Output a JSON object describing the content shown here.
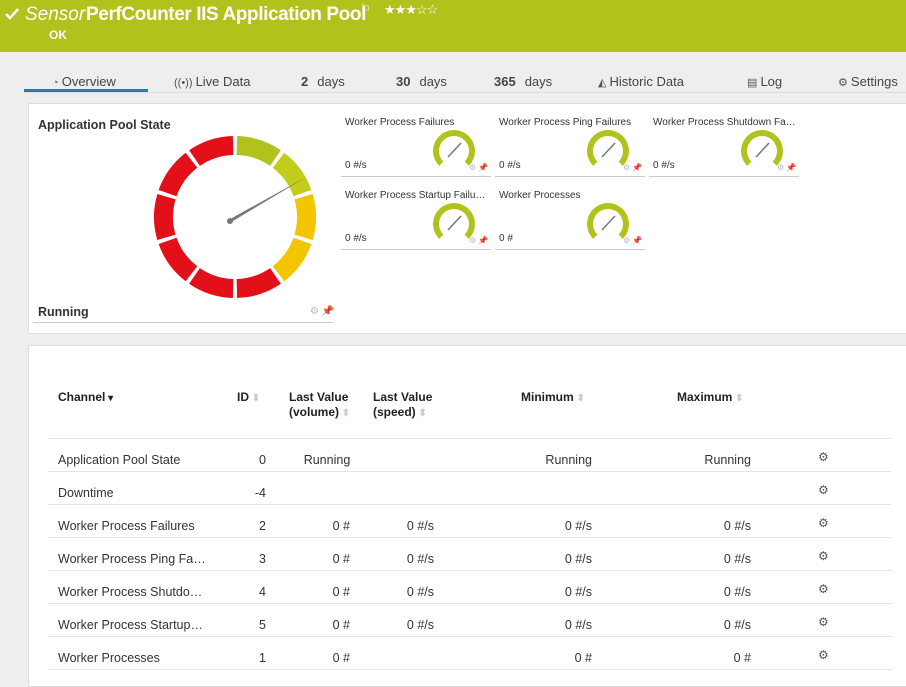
{
  "header": {
    "prefix": "Sensor",
    "title": "PerfCounter IIS Application Pool",
    "status": "OK"
  },
  "tabs": [
    {
      "label": "Overview"
    },
    {
      "label": "Live Data"
    },
    {
      "count": "2",
      "label": "days"
    },
    {
      "count": "30",
      "label": "days"
    },
    {
      "count": "365",
      "label": "days"
    },
    {
      "label": "Historic Data"
    },
    {
      "label": "Log"
    },
    {
      "label": "Settings"
    }
  ],
  "main_gauge": {
    "title": "Application Pool State",
    "value": "Running"
  },
  "gauges": [
    {
      "name": "Worker Process Failures",
      "value": "0 #/s"
    },
    {
      "name": "Worker Process Ping Failures",
      "value": "0 #/s"
    },
    {
      "name": "Worker Process Shutdown Fa…",
      "value": "0 #/s"
    },
    {
      "name": "Worker Process Startup Failu…",
      "value": "0 #/s"
    },
    {
      "name": "Worker Processes",
      "value": "0 #"
    }
  ],
  "table": {
    "columns": [
      "Channel",
      "ID",
      "Last Value (volume)",
      "Last Value (speed)",
      "Minimum",
      "Maximum"
    ],
    "rows": [
      [
        "Application Pool State",
        0,
        "Running",
        null,
        "Running",
        "Running"
      ],
      [
        "Downtime",
        -4,
        null,
        null,
        null,
        null
      ],
      [
        "Worker Process Failures",
        2,
        "0 #",
        "0 #/s",
        "0 #/s",
        "0 #/s"
      ],
      [
        "Worker Process Ping Fa…",
        3,
        "0 #",
        "0 #/s",
        "0 #/s",
        "0 #/s"
      ],
      [
        "Worker Process Shutdo…",
        4,
        "0 #",
        "0 #/s",
        "0 #/s",
        "0 #/s"
      ],
      [
        "Worker Process Startup…",
        5,
        "0 #",
        "0 #/s",
        "0 #/s",
        "0 #/s"
      ],
      [
        "Worker Processes",
        1,
        "0 #",
        null,
        "0 #",
        "0 #"
      ]
    ]
  }
}
